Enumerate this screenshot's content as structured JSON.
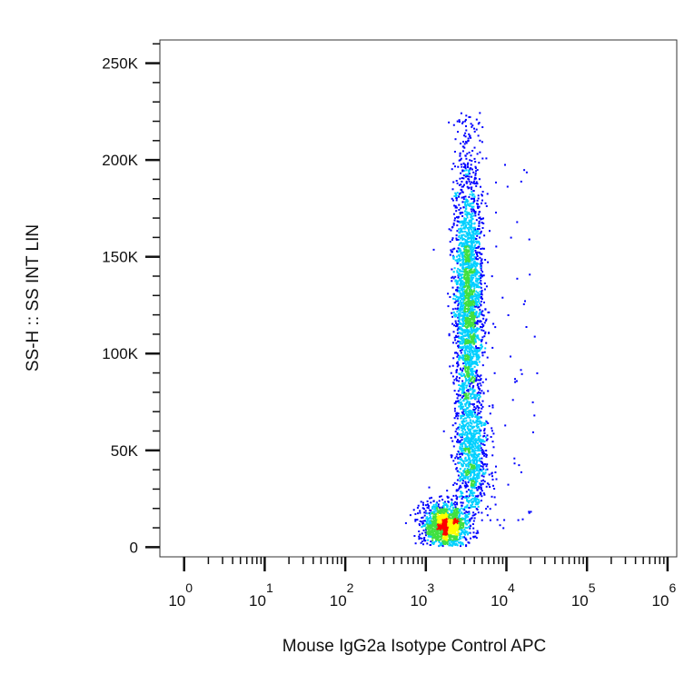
{
  "chart_data": {
    "type": "scatter",
    "style": "flow-cytometry density dot plot (pseudocolor: blue low, green, yellow, red high)",
    "xlabel": "Mouse IgG2a Isotype Control APC",
    "ylabel": "SS-H :: SS INT LIN",
    "x_scale": "log",
    "xlim": [
      0.5,
      1300000
    ],
    "ylim": [
      -5000,
      262000
    ],
    "x_ticks": [
      {
        "base": "10",
        "exp": "0",
        "value": 1
      },
      {
        "base": "10",
        "exp": "1",
        "value": 10
      },
      {
        "base": "10",
        "exp": "2",
        "value": 100
      },
      {
        "base": "10",
        "exp": "3",
        "value": 1000
      },
      {
        "base": "10",
        "exp": "4",
        "value": 10000
      },
      {
        "base": "10",
        "exp": "5",
        "value": 100000
      },
      {
        "base": "10",
        "exp": "6",
        "value": 1000000
      }
    ],
    "y_ticks": [
      {
        "label": "0",
        "value": 0
      },
      {
        "label": "50K",
        "value": 50000
      },
      {
        "label": "100K",
        "value": 100000
      },
      {
        "label": "150K",
        "value": 150000
      },
      {
        "label": "200K",
        "value": 200000
      },
      {
        "label": "250K",
        "value": 250000
      }
    ],
    "populations": [
      {
        "name": "low side-scatter cluster",
        "x_center": 1700,
        "y_center": 12000,
        "x_spread_log10": 0.13,
        "y_spread": 5500,
        "relative_density": "high"
      },
      {
        "name": "main high side-scatter cluster",
        "x_center": 3300,
        "y_center": 125000,
        "x_spread_log10": 0.09,
        "y_spread": 38000,
        "relative_density": "medium"
      },
      {
        "name": "mid side-scatter cluster",
        "x_center": 3700,
        "y_center": 45000,
        "x_spread_log10": 0.1,
        "y_spread": 14000,
        "relative_density": "low"
      }
    ],
    "grid": false,
    "legend": "none",
    "colors": {
      "low": "#0000ff",
      "mid_low": "#00d0ff",
      "mid": "#40e040",
      "mid_high": "#ffff00",
      "high": "#ff0000"
    }
  }
}
